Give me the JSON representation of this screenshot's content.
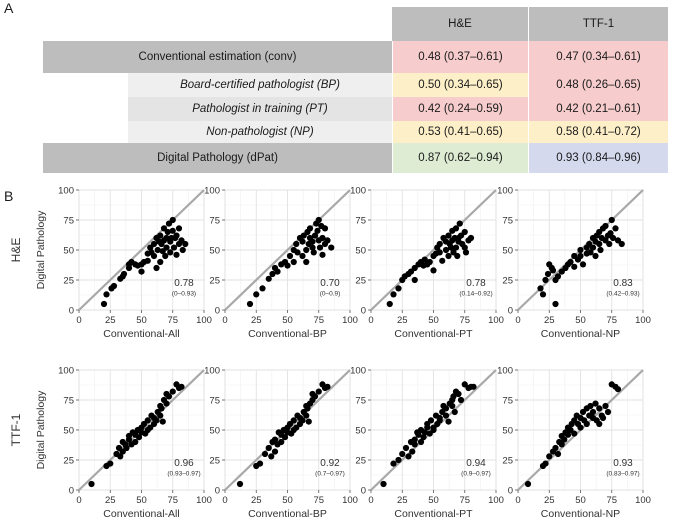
{
  "panel_labels": {
    "a": "A",
    "b": "B"
  },
  "table": {
    "columns": [
      "H&E",
      "TTF-1"
    ],
    "rows": [
      {
        "label": "Conventional estimation (conv)",
        "kind": "main",
        "he": "0.48 (0.37–0.61)",
        "ttf": "0.47 (0.34–0.61)",
        "he_color": "#f6cccc",
        "ttf_color": "#f6cccc"
      },
      {
        "label": "Board-certified pathologist (BP)",
        "kind": "sub",
        "he": "0.50 (0.34–0.65)",
        "ttf": "0.48 (0.26–0.65)",
        "he_color": "#fdf0c8",
        "ttf_color": "#f6cccc"
      },
      {
        "label": "Pathologist in training (PT)",
        "kind": "sub",
        "he": "0.42 (0.24–0.59)",
        "ttf": "0.42 (0.21–0.61)",
        "he_color": "#f6cccc",
        "ttf_color": "#f6cccc"
      },
      {
        "label": "Non-pathologist (NP)",
        "kind": "sub",
        "he": "0.53 (0.41–0.65)",
        "ttf": "0.58 (0.41–0.72)",
        "he_color": "#fdf0c8",
        "ttf_color": "#fdf0c8"
      },
      {
        "label": "Digital Pathology (dPat)",
        "kind": "main",
        "he": "0.87 (0.62–0.94)",
        "ttf": "0.93 (0.84–0.96)",
        "he_color": "#ddecd3",
        "ttf_color": "#d4d9ee"
      }
    ]
  },
  "plot_grid": {
    "row_labels": [
      "H&E",
      "TTF-1"
    ],
    "ylabel": "Digital Pathology"
  },
  "chart_data": [
    {
      "type": "scatter",
      "row": 0,
      "col": 0,
      "xlabel": "Conventional-All",
      "ylabel": "Digital Pathology",
      "xlim": [
        0,
        100
      ],
      "ylim": [
        0,
        100
      ],
      "ticks": [
        0,
        25,
        50,
        75,
        100
      ],
      "r_value": "0.78",
      "ci": "(0–0.93)",
      "identity_line": true,
      "x": [
        20,
        22,
        26,
        28,
        33,
        35,
        36,
        40,
        40,
        42,
        45,
        47,
        50,
        50,
        52,
        55,
        55,
        57,
        58,
        60,
        60,
        62,
        62,
        63,
        64,
        65,
        65,
        66,
        67,
        68,
        68,
        69,
        70,
        70,
        71,
        72,
        73,
        73,
        74,
        75,
        75,
        76,
        77,
        78,
        78,
        80,
        80,
        82,
        83,
        85
      ],
      "y": [
        5,
        13,
        18,
        20,
        26,
        28,
        30,
        35,
        38,
        40,
        38,
        37,
        38,
        32,
        40,
        41,
        47,
        52,
        48,
        55,
        45,
        60,
        35,
        50,
        57,
        62,
        40,
        55,
        49,
        58,
        68,
        45,
        60,
        52,
        65,
        72,
        57,
        48,
        60,
        66,
        75,
        52,
        60,
        46,
        62,
        55,
        68,
        58,
        50,
        55
      ]
    },
    {
      "type": "scatter",
      "row": 0,
      "col": 1,
      "xlabel": "Conventional-BP",
      "ylabel": "Digital Pathology",
      "xlim": [
        0,
        100
      ],
      "ylim": [
        0,
        100
      ],
      "ticks": [
        0,
        25,
        50,
        75,
        100
      ],
      "r_value": "0.70",
      "ci": "(0–0.9)",
      "identity_line": true,
      "x": [
        20,
        25,
        30,
        35,
        38,
        40,
        42,
        45,
        48,
        50,
        52,
        55,
        55,
        57,
        58,
        60,
        62,
        62,
        63,
        65,
        65,
        66,
        67,
        68,
        68,
        70,
        70,
        71,
        72,
        73,
        74,
        75,
        75,
        76,
        77,
        78,
        78,
        80,
        80,
        82,
        85
      ],
      "y": [
        5,
        13,
        18,
        26,
        30,
        35,
        32,
        38,
        40,
        37,
        45,
        40,
        50,
        55,
        48,
        60,
        45,
        57,
        62,
        50,
        40,
        65,
        55,
        60,
        68,
        52,
        57,
        48,
        62,
        72,
        66,
        75,
        58,
        52,
        70,
        46,
        60,
        55,
        68,
        58,
        52
      ]
    },
    {
      "type": "scatter",
      "row": 0,
      "col": 2,
      "xlabel": "Conventional-PT",
      "ylabel": "Digital Pathology",
      "xlim": [
        0,
        100
      ],
      "ylim": [
        0,
        100
      ],
      "ticks": [
        0,
        25,
        50,
        75,
        100
      ],
      "r_value": "0.78",
      "ci": "(0.14–0.92)",
      "identity_line": true,
      "x": [
        15,
        18,
        22,
        25,
        27,
        30,
        32,
        35,
        35,
        38,
        40,
        42,
        43,
        45,
        47,
        50,
        50,
        52,
        53,
        55,
        55,
        57,
        58,
        60,
        60,
        62,
        62,
        63,
        64,
        65,
        65,
        66,
        67,
        68,
        68,
        69,
        70,
        70,
        71,
        72,
        73,
        75,
        75,
        76,
        78,
        80
      ],
      "y": [
        5,
        13,
        18,
        25,
        28,
        30,
        32,
        35,
        25,
        38,
        40,
        37,
        42,
        38,
        40,
        45,
        33,
        47,
        52,
        48,
        55,
        41,
        60,
        50,
        57,
        62,
        45,
        55,
        52,
        58,
        66,
        48,
        60,
        52,
        68,
        45,
        60,
        57,
        72,
        62,
        55,
        65,
        52,
        48,
        58,
        60
      ]
    },
    {
      "type": "scatter",
      "row": 0,
      "col": 3,
      "xlabel": "Conventional-NP",
      "ylabel": "Digital Pathology",
      "xlim": [
        0,
        100
      ],
      "ylim": [
        0,
        100
      ],
      "ticks": [
        0,
        25,
        50,
        75,
        100
      ],
      "r_value": "0.83",
      "ci": "(0.42–0.93)",
      "identity_line": true,
      "x": [
        18,
        20,
        22,
        24,
        25,
        27,
        28,
        30,
        30,
        32,
        35,
        38,
        40,
        42,
        45,
        45,
        48,
        50,
        50,
        52,
        55,
        55,
        57,
        58,
        60,
        60,
        62,
        62,
        63,
        65,
        65,
        66,
        67,
        68,
        70,
        70,
        72,
        73,
        74,
        75,
        76,
        78,
        80,
        83
      ],
      "y": [
        18,
        13,
        25,
        30,
        38,
        35,
        33,
        25,
        5,
        28,
        32,
        35,
        38,
        40,
        45,
        36,
        42,
        45,
        50,
        38,
        47,
        52,
        55,
        48,
        52,
        60,
        45,
        57,
        62,
        55,
        65,
        50,
        60,
        68,
        58,
        70,
        62,
        55,
        64,
        75,
        60,
        68,
        58,
        55
      ]
    },
    {
      "type": "scatter",
      "row": 1,
      "col": 0,
      "xlabel": "Conventional-All",
      "ylabel": "Digital Pathology",
      "xlim": [
        0,
        100
      ],
      "ylim": [
        0,
        100
      ],
      "ticks": [
        0,
        25,
        50,
        75,
        100
      ],
      "r_value": "0.96",
      "ci": "(0.93–0.97)",
      "identity_line": true,
      "x": [
        10,
        22,
        25,
        30,
        32,
        33,
        35,
        35,
        37,
        38,
        40,
        40,
        42,
        43,
        45,
        45,
        47,
        48,
        50,
        50,
        52,
        53,
        55,
        55,
        57,
        58,
        60,
        60,
        62,
        63,
        65,
        65,
        66,
        67,
        68,
        70,
        70,
        72,
        75,
        78,
        80,
        82
      ],
      "y": [
        5,
        20,
        22,
        30,
        35,
        28,
        32,
        40,
        38,
        35,
        45,
        42,
        38,
        48,
        46,
        40,
        50,
        44,
        48,
        52,
        55,
        47,
        58,
        50,
        52,
        62,
        55,
        60,
        58,
        65,
        70,
        62,
        68,
        57,
        75,
        72,
        80,
        78,
        82,
        88,
        85,
        86
      ]
    },
    {
      "type": "scatter",
      "row": 1,
      "col": 1,
      "xlabel": "Conventional-BP",
      "ylabel": "Digital Pathology",
      "xlim": [
        0,
        100
      ],
      "ylim": [
        0,
        100
      ],
      "ticks": [
        0,
        25,
        50,
        75,
        100
      ],
      "r_value": "0.92",
      "ci": "(0.7–0.97)",
      "identity_line": true,
      "x": [
        12,
        25,
        28,
        32,
        35,
        37,
        38,
        40,
        40,
        42,
        43,
        45,
        45,
        47,
        48,
        50,
        50,
        52,
        53,
        55,
        55,
        57,
        58,
        60,
        60,
        62,
        63,
        65,
        65,
        66,
        67,
        68,
        70,
        70,
        72,
        75,
        78,
        80,
        82
      ],
      "y": [
        5,
        20,
        22,
        30,
        35,
        28,
        40,
        32,
        42,
        38,
        48,
        46,
        40,
        50,
        44,
        48,
        52,
        55,
        47,
        58,
        50,
        52,
        62,
        55,
        60,
        58,
        65,
        70,
        62,
        68,
        57,
        72,
        75,
        80,
        78,
        82,
        88,
        85,
        86
      ]
    },
    {
      "type": "scatter",
      "row": 1,
      "col": 2,
      "xlabel": "Conventional-PT",
      "ylabel": "Digital Pathology",
      "xlim": [
        0,
        100
      ],
      "ylim": [
        0,
        100
      ],
      "ticks": [
        0,
        25,
        50,
        75,
        100
      ],
      "r_value": "0.94",
      "ci": "(0.9–0.97)",
      "identity_line": true,
      "x": [
        10,
        18,
        22,
        25,
        28,
        30,
        32,
        33,
        35,
        35,
        37,
        38,
        40,
        40,
        42,
        43,
        45,
        45,
        47,
        48,
        50,
        50,
        52,
        53,
        55,
        55,
        57,
        58,
        60,
        60,
        62,
        63,
        65,
        65,
        66,
        67,
        68,
        70,
        72,
        75,
        78,
        80,
        82
      ],
      "y": [
        5,
        22,
        25,
        30,
        35,
        28,
        40,
        32,
        42,
        38,
        48,
        46,
        40,
        50,
        44,
        48,
        52,
        55,
        47,
        58,
        50,
        52,
        62,
        55,
        60,
        58,
        65,
        70,
        62,
        68,
        57,
        72,
        75,
        70,
        78,
        65,
        82,
        80,
        75,
        88,
        85,
        86,
        86
      ]
    },
    {
      "type": "scatter",
      "row": 1,
      "col": 3,
      "xlabel": "Conventional-NP",
      "ylabel": "Digital Pathology",
      "xlim": [
        0,
        100
      ],
      "ylim": [
        0,
        100
      ],
      "ticks": [
        0,
        25,
        50,
        75,
        100
      ],
      "r_value": "0.93",
      "ci": "(0.83–0.97)",
      "identity_line": true,
      "x": [
        8,
        20,
        22,
        25,
        28,
        30,
        32,
        33,
        35,
        35,
        37,
        38,
        40,
        40,
        42,
        43,
        45,
        45,
        47,
        48,
        50,
        50,
        52,
        53,
        55,
        55,
        57,
        58,
        60,
        60,
        62,
        63,
        65,
        65,
        67,
        68,
        70,
        72,
        75,
        78,
        80
      ],
      "y": [
        5,
        20,
        22,
        28,
        32,
        35,
        30,
        40,
        38,
        45,
        42,
        48,
        46,
        52,
        50,
        55,
        58,
        47,
        62,
        55,
        60,
        52,
        65,
        58,
        68,
        55,
        62,
        70,
        60,
        65,
        72,
        58,
        68,
        55,
        62,
        60,
        70,
        65,
        88,
        86,
        84
      ]
    }
  ]
}
